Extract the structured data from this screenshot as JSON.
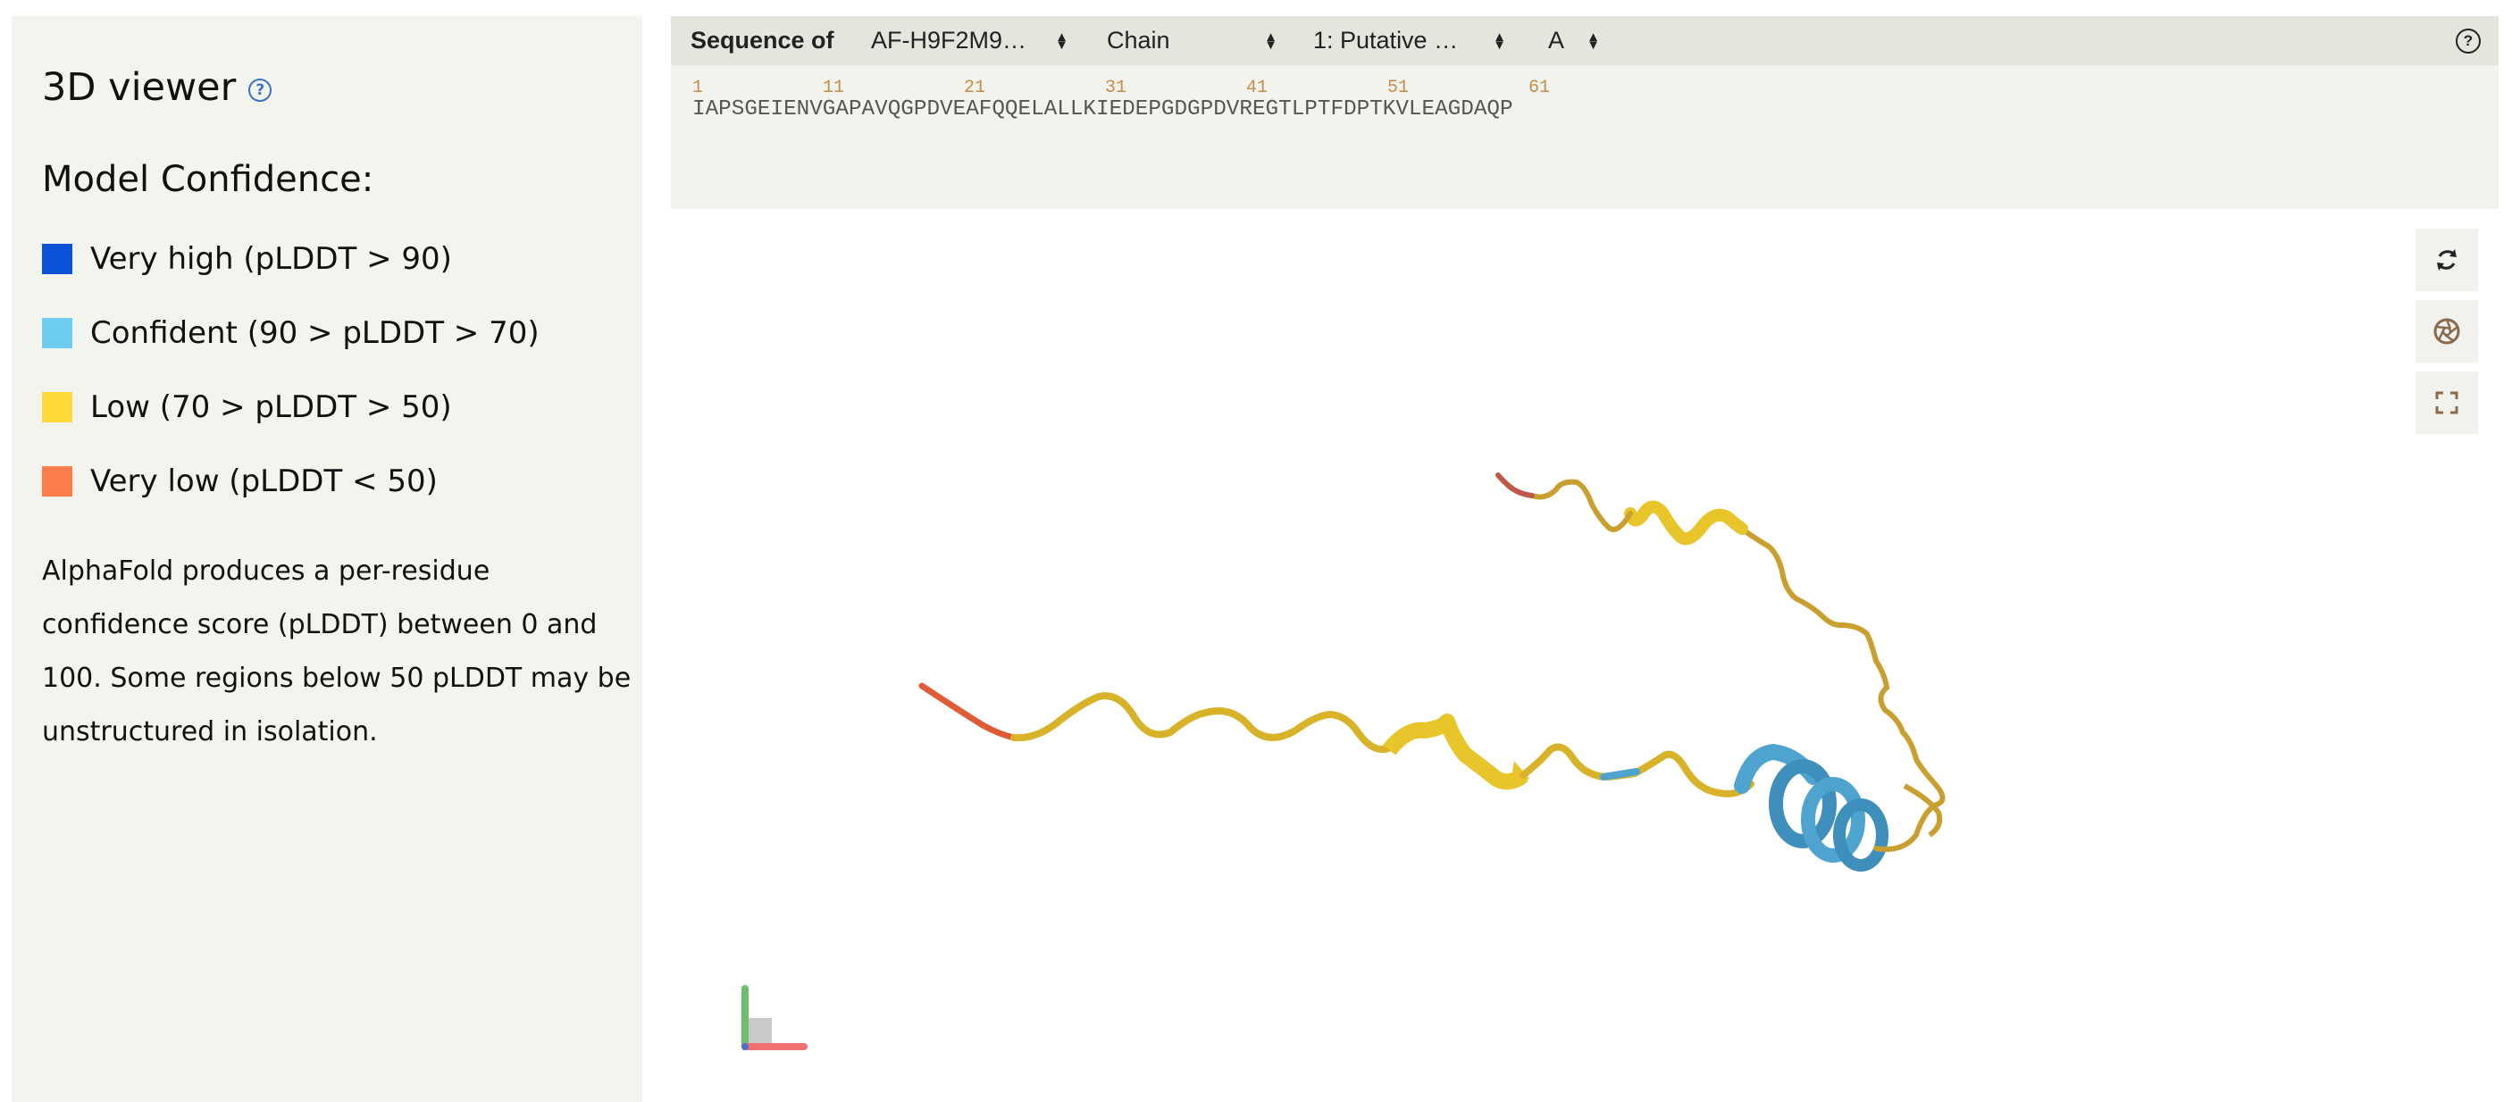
{
  "left_panel": {
    "title": "3D viewer",
    "help_icon": "question-circle-icon",
    "confidence_title": "Model Confidence:",
    "legend": [
      {
        "label": "Very high (pLDDT > 90)",
        "color": "#0b52d6"
      },
      {
        "label": "Confident (90 > pLDDT > 70)",
        "color": "#6ccbf1"
      },
      {
        "label": "Low (70 > pLDDT > 50)",
        "color": "#fdd935"
      },
      {
        "label": "Very low (pLDDT < 50)",
        "color": "#fd7d4d"
      }
    ],
    "description": "AlphaFold produces a per-residue confidence score (pLDDT) between 0 and 100. Some regions below 50 pLDDT may be unstructured in isolation."
  },
  "sequence_bar": {
    "label": "Sequence of",
    "entry_select": "AF-H9F2M9…",
    "mode_select": "Chain",
    "entity_select": "1: Putative …",
    "chain_select": "A",
    "help_icon": "question-circle-icon",
    "numbers": [
      "1",
      "11",
      "21",
      "31",
      "41",
      "51",
      "61"
    ],
    "sequence": "IAPSGEIENVGAPAVQGPDVEAFQQELALLKIEDEPGDGPDVREGTLPTFDPTKVLEAGDAQP"
  },
  "controls": {
    "reset_icon": "reset-camera-icon",
    "screenshot_icon": "camera-aperture-icon",
    "fullscreen_icon": "fullscreen-icon"
  },
  "colors": {
    "helix": "#4fa3cf",
    "coil": "#e6c12a",
    "low": "#d8a92a",
    "very_low": "#e05b38"
  }
}
